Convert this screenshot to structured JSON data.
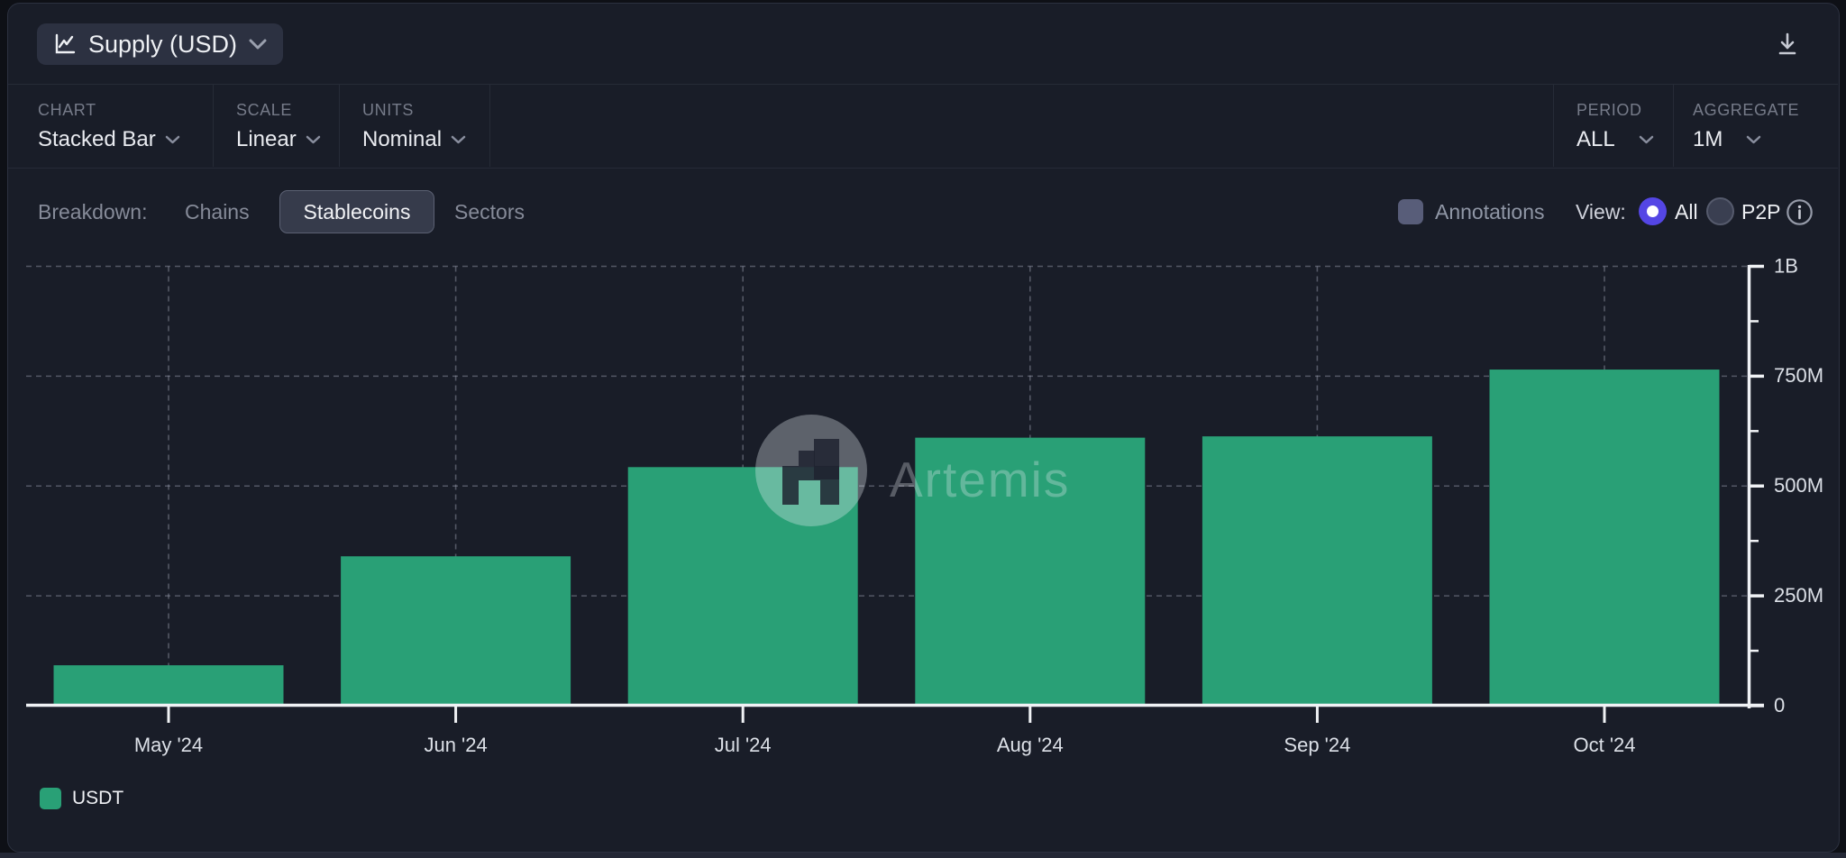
{
  "header": {
    "metric_label": "Supply (USD)"
  },
  "toolbar": {
    "sections": [
      {
        "label": "CHART",
        "value": "Stacked Bar"
      },
      {
        "label": "SCALE",
        "value": "Linear"
      },
      {
        "label": "UNITS",
        "value": "Nominal"
      },
      {
        "label": "PERIOD",
        "value": "ALL"
      },
      {
        "label": "AGGREGATE",
        "value": "1M"
      }
    ]
  },
  "breakdown": {
    "label": "Breakdown:",
    "options": [
      {
        "label": "Chains",
        "active": false
      },
      {
        "label": "Stablecoins",
        "active": true
      },
      {
        "label": "Sectors",
        "active": false
      }
    ],
    "annotations_label": "Annotations",
    "view_label": "View:",
    "view_options": [
      {
        "label": "All",
        "selected": true
      },
      {
        "label": "P2P",
        "selected": false
      }
    ]
  },
  "watermark": {
    "brand": "Artemis"
  },
  "legend": [
    {
      "label": "USDT",
      "color": "#29a076"
    }
  ],
  "colors": {
    "bar_green": "#29a076",
    "accent_purple": "#5446e5",
    "panel_bg": "#191d28"
  },
  "chart_data": {
    "type": "bar",
    "stacked": true,
    "title": "Supply (USD)",
    "categories": [
      "May '24",
      "Jun '24",
      "Jul '24",
      "Aug '24",
      "Sep '24",
      "Oct '24"
    ],
    "series": [
      {
        "name": "USDT",
        "color": "#29a076",
        "values_usd_millions": [
          92,
          340,
          543,
          610,
          613,
          765
        ]
      }
    ],
    "y_axis": {
      "side": "right",
      "ylim_musd": [
        0,
        1000
      ],
      "ticks": [
        {
          "label": "0",
          "value_musd": 0
        },
        {
          "label": "250M",
          "value_musd": 250
        },
        {
          "label": "500M",
          "value_musd": 500
        },
        {
          "label": "750M",
          "value_musd": 750
        },
        {
          "label": "1B",
          "value_musd": 1000
        }
      ]
    },
    "grid": {
      "horizontal": true,
      "vertical": true,
      "style": "dashed"
    },
    "legend_position": "bottom-left"
  }
}
